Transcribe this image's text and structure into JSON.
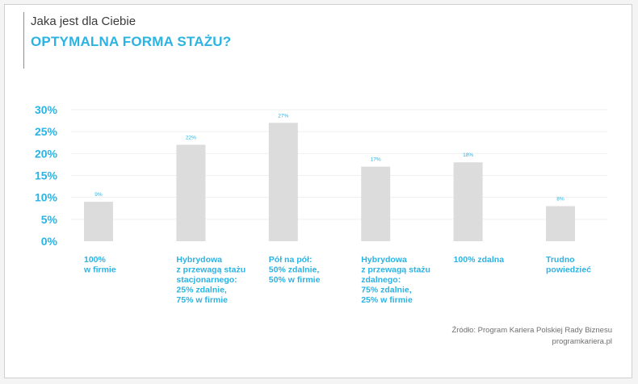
{
  "header": {
    "subtitle": "Jaka jest dla Ciebie",
    "title": "OPTYMALNA FORMA STAŻU?"
  },
  "source": {
    "line1": "Źródło: Program Kariera Polskiej Rady Biznesu",
    "line2": "programkariera.pl"
  },
  "colors": {
    "accent": "#2bb3e3",
    "bar": "#dcdcdc",
    "grid": "#efefef"
  },
  "chart_data": {
    "type": "bar",
    "categories": [
      [
        "100%",
        "w firmie"
      ],
      [
        "Hybrydowa",
        "z przewagą stażu",
        "stacjonarnego:",
        "25% zdalnie,",
        "75% w firmie"
      ],
      [
        "Pół na pół:",
        "50% zdalnie,",
        "50% w firmie"
      ],
      [
        "Hybrydowa",
        "z przewagą stażu",
        "zdalnego:",
        "75% zdalnie,",
        "25% w firmie"
      ],
      [
        "100% zdalna"
      ],
      [
        "Trudno",
        "powiedzieć"
      ]
    ],
    "values": [
      9,
      22,
      27,
      17,
      18,
      8
    ],
    "data_labels": [
      "9%",
      "22%",
      "27%",
      "17%",
      "18%",
      "8%"
    ],
    "yticks": [
      "0%",
      "5%",
      "10%",
      "15%",
      "20%",
      "25%",
      "30%"
    ],
    "ylim": [
      0,
      30
    ],
    "grid": true
  }
}
